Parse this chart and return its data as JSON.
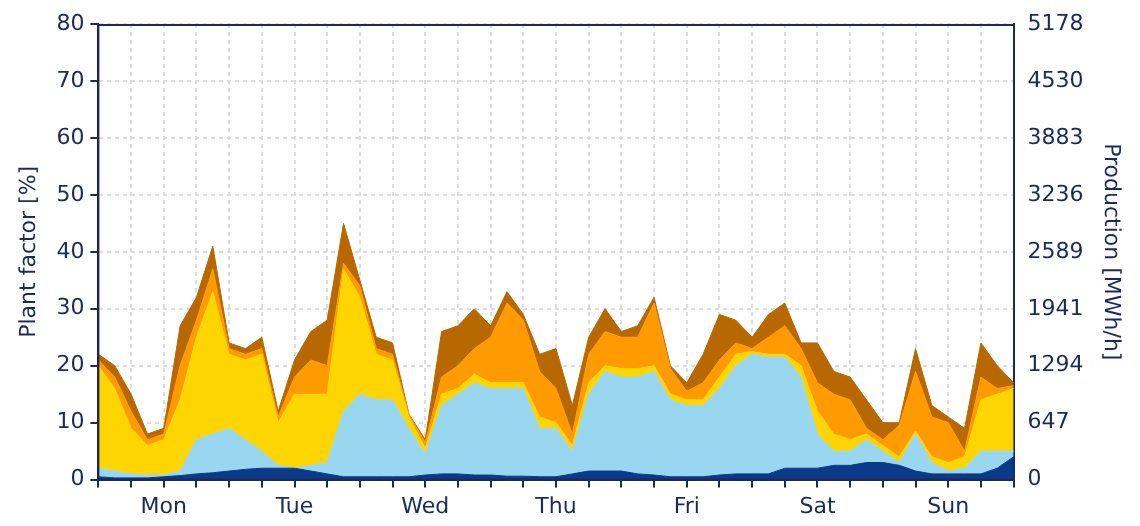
{
  "chart_data": {
    "type": "area",
    "stacked": true,
    "ylabel": "Plant factor [%]",
    "y2label": "Production [MWh/h]",
    "categories": [
      null,
      null,
      null,
      null,
      "Mon",
      null,
      null,
      null,
      null,
      null,
      null,
      null,
      "Tue",
      null,
      null,
      null,
      null,
      null,
      null,
      null,
      "Wed",
      null,
      null,
      null,
      null,
      null,
      null,
      null,
      "Thu",
      null,
      null,
      null,
      null,
      null,
      null,
      null,
      "Fri",
      null,
      null,
      null,
      null,
      null,
      null,
      null,
      "Sat",
      null,
      null,
      null,
      null,
      null,
      null,
      null,
      "Sun",
      null,
      null,
      null,
      null
    ],
    "series": [
      {
        "color": "#0a3a8a",
        "values": [
          0.5,
          0.3,
          0.3,
          0.3,
          0.5,
          0.7,
          1,
          1.2,
          1.5,
          1.8,
          2,
          2,
          2,
          1.5,
          1,
          0.5,
          0.5,
          0.5,
          0.5,
          0.5,
          0.8,
          1,
          1,
          0.8,
          0.8,
          0.6,
          0.6,
          0.5,
          0.5,
          1,
          1.5,
          1.5,
          1.5,
          1,
          0.8,
          0.5,
          0.5,
          0.5,
          0.8,
          1,
          1,
          1,
          2,
          2,
          2,
          2.5,
          2.5,
          3,
          3,
          2.5,
          1.5,
          1,
          1,
          1,
          1,
          2,
          4
        ]
      },
      {
        "color": "#98d7ef",
        "values": [
          1.5,
          1.2,
          0.7,
          0.5,
          0.3,
          0.8,
          6,
          6.8,
          7.5,
          5.2,
          3,
          0.5,
          0,
          1,
          2,
          11.5,
          14.5,
          13.5,
          13.5,
          8.5,
          3.7,
          12,
          14,
          16.2,
          15.2,
          15.4,
          15.4,
          8.5,
          8.5,
          4,
          13.5,
          17.5,
          16.5,
          17,
          18.2,
          13.5,
          12.5,
          12.5,
          15.2,
          19,
          21,
          20.5,
          19.5,
          16,
          6,
          2.5,
          2.5,
          4,
          2,
          0.5,
          6.5,
          2,
          0.5,
          1,
          4,
          3,
          1
        ]
      },
      {
        "color": "#ffd500",
        "values": [
          18,
          14.5,
          8,
          5.2,
          6.2,
          12.5,
          18,
          25,
          13,
          14,
          17,
          7.5,
          13,
          12.5,
          12,
          25,
          17,
          8,
          7,
          2,
          1,
          2,
          1,
          1.5,
          1,
          1,
          1,
          2,
          1,
          1,
          2,
          1,
          1.5,
          1.5,
          1,
          1,
          1,
          1,
          2,
          2,
          0.5,
          0.5,
          0.5,
          2,
          4,
          3,
          2,
          1,
          1,
          1,
          0.5,
          1,
          1.5,
          2,
          9,
          10,
          11
        ]
      },
      {
        "color": "#ff9a00",
        "values": [
          1,
          2,
          3,
          1,
          1,
          6,
          3,
          4,
          1,
          1,
          1,
          1,
          3,
          6,
          5,
          1,
          2,
          1,
          1,
          0.5,
          1,
          3,
          4,
          4.5,
          8,
          14,
          11,
          8,
          6,
          2,
          5,
          6,
          5.5,
          5.5,
          11,
          4.5,
          1.5,
          3,
          3,
          2,
          0.5,
          3,
          5,
          3,
          5,
          7,
          7,
          1,
          1,
          5.5,
          10.5,
          7,
          7,
          1,
          4,
          1,
          0.5
        ]
      },
      {
        "color": "#b86800",
        "values": [
          1,
          2,
          3,
          1,
          1,
          7,
          4,
          4,
          1,
          1,
          2,
          1,
          3,
          5,
          8,
          7,
          1,
          2,
          2,
          0,
          0.5,
          8,
          7,
          7,
          2,
          2,
          1,
          3,
          7,
          5,
          3,
          4,
          1,
          2,
          1,
          0.5,
          1.5,
          5,
          8,
          4,
          2,
          4,
          4,
          1,
          7,
          4,
          4,
          5,
          3,
          0.5,
          4,
          2,
          1,
          4,
          6,
          4,
          0.5
        ]
      }
    ],
    "ylim": [
      0,
      80
    ],
    "yticks": [
      0,
      10,
      20,
      30,
      40,
      50,
      60,
      70,
      80
    ],
    "y2lim": [
      0,
      5178
    ],
    "y2ticks": [
      0,
      647,
      1294,
      1941,
      2589,
      3236,
      3883,
      4530,
      5178
    ],
    "grid": true
  }
}
